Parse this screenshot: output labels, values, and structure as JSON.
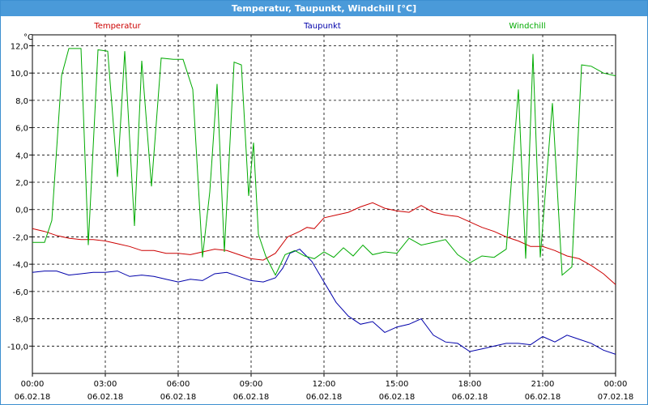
{
  "window": {
    "title": "Temperatur, Taupunkt, Windchill [°C]"
  },
  "chart_data": {
    "type": "line",
    "title": "Temperatur, Taupunkt, Windchill [°C]",
    "ylabel": "°C",
    "ylim": [
      -12,
      12.8
    ],
    "xlim": [
      0,
      24
    ],
    "grid": true,
    "y_ticks": [
      12.0,
      10.0,
      8.0,
      6.0,
      4.0,
      2.0,
      0.0,
      -2.0,
      -4.0,
      -6.0,
      -8.0,
      -10.0
    ],
    "y_tick_labels": [
      "12,0",
      "10,0",
      "8,0",
      "6,0",
      "4,0",
      "2,0",
      "0,0",
      "-2,0",
      "-4,0",
      "-6,0",
      "-8,0",
      "-10,0"
    ],
    "x_ticks": [
      {
        "hour": 0,
        "time": "00:00",
        "date": "06.02.18"
      },
      {
        "hour": 3,
        "time": "03:00",
        "date": "06.02.18"
      },
      {
        "hour": 6,
        "time": "06:00",
        "date": "06.02.18"
      },
      {
        "hour": 9,
        "time": "09:00",
        "date": "06.02.18"
      },
      {
        "hour": 12,
        "time": "12:00",
        "date": "06.02.18"
      },
      {
        "hour": 15,
        "time": "15:00",
        "date": "06.02.18"
      },
      {
        "hour": 18,
        "time": "18:00",
        "date": "06.02.18"
      },
      {
        "hour": 21,
        "time": "21:00",
        "date": "06.02.18"
      },
      {
        "hour": 24,
        "time": "00:00",
        "date": "07.02.18"
      }
    ],
    "series": [
      {
        "name": "Temperatur",
        "color": "#cc0000",
        "points": [
          [
            0,
            -1.4
          ],
          [
            0.5,
            -1.6
          ],
          [
            1,
            -1.9
          ],
          [
            1.5,
            -2.1
          ],
          [
            2,
            -2.2
          ],
          [
            2.5,
            -2.2
          ],
          [
            3,
            -2.3
          ],
          [
            3.5,
            -2.5
          ],
          [
            4,
            -2.7
          ],
          [
            4.5,
            -3.0
          ],
          [
            5,
            -3.0
          ],
          [
            5.5,
            -3.2
          ],
          [
            6,
            -3.2
          ],
          [
            6.5,
            -3.3
          ],
          [
            7,
            -3.1
          ],
          [
            7.5,
            -2.9
          ],
          [
            8,
            -3.0
          ],
          [
            8.5,
            -3.3
          ],
          [
            9,
            -3.6
          ],
          [
            9.5,
            -3.7
          ],
          [
            10,
            -3.2
          ],
          [
            10.5,
            -2.0
          ],
          [
            11,
            -1.6
          ],
          [
            11.3,
            -1.3
          ],
          [
            11.6,
            -1.4
          ],
          [
            12,
            -0.6
          ],
          [
            12.5,
            -0.4
          ],
          [
            13,
            -0.2
          ],
          [
            13.5,
            0.2
          ],
          [
            14,
            0.5
          ],
          [
            14.5,
            0.1
          ],
          [
            15,
            -0.1
          ],
          [
            15.5,
            -0.2
          ],
          [
            16,
            0.3
          ],
          [
            16.5,
            -0.2
          ],
          [
            17,
            -0.4
          ],
          [
            17.5,
            -0.5
          ],
          [
            18,
            -0.9
          ],
          [
            18.5,
            -1.3
          ],
          [
            19,
            -1.6
          ],
          [
            19.5,
            -2.0
          ],
          [
            20,
            -2.3
          ],
          [
            20.5,
            -2.7
          ],
          [
            21,
            -2.7
          ],
          [
            21.5,
            -3.0
          ],
          [
            22,
            -3.4
          ],
          [
            22.5,
            -3.6
          ],
          [
            23,
            -4.1
          ],
          [
            23.5,
            -4.7
          ],
          [
            24,
            -5.5
          ]
        ]
      },
      {
        "name": "Taupunkt",
        "color": "#0000aa",
        "points": [
          [
            0,
            -4.6
          ],
          [
            0.5,
            -4.5
          ],
          [
            1,
            -4.5
          ],
          [
            1.5,
            -4.8
          ],
          [
            2,
            -4.7
          ],
          [
            2.5,
            -4.6
          ],
          [
            3,
            -4.6
          ],
          [
            3.5,
            -4.5
          ],
          [
            4,
            -4.9
          ],
          [
            4.5,
            -4.8
          ],
          [
            5,
            -4.9
          ],
          [
            5.5,
            -5.1
          ],
          [
            6,
            -5.3
          ],
          [
            6.5,
            -5.1
          ],
          [
            7,
            -5.2
          ],
          [
            7.5,
            -4.7
          ],
          [
            8,
            -4.6
          ],
          [
            8.5,
            -4.9
          ],
          [
            9,
            -5.2
          ],
          [
            9.5,
            -5.3
          ],
          [
            10,
            -5.0
          ],
          [
            10.3,
            -4.3
          ],
          [
            10.6,
            -3.2
          ],
          [
            11,
            -2.9
          ],
          [
            11.5,
            -3.8
          ],
          [
            12,
            -5.3
          ],
          [
            12.5,
            -6.8
          ],
          [
            13,
            -7.8
          ],
          [
            13.5,
            -8.4
          ],
          [
            14,
            -8.2
          ],
          [
            14.5,
            -9.0
          ],
          [
            15,
            -8.6
          ],
          [
            15.5,
            -8.4
          ],
          [
            16,
            -8.0
          ],
          [
            16.5,
            -9.2
          ],
          [
            17,
            -9.7
          ],
          [
            17.5,
            -9.8
          ],
          [
            18,
            -10.4
          ],
          [
            18.5,
            -10.2
          ],
          [
            19,
            -10.0
          ],
          [
            19.5,
            -9.8
          ],
          [
            20,
            -9.8
          ],
          [
            20.5,
            -9.9
          ],
          [
            21,
            -9.3
          ],
          [
            21.5,
            -9.7
          ],
          [
            22,
            -9.2
          ],
          [
            22.5,
            -9.5
          ],
          [
            23,
            -9.8
          ],
          [
            23.5,
            -10.3
          ],
          [
            24,
            -10.6
          ]
        ]
      },
      {
        "name": "Windchill",
        "color": "#00aa00",
        "points": [
          [
            0,
            -2.4
          ],
          [
            0.5,
            -2.4
          ],
          [
            0.8,
            -0.8
          ],
          [
            1.2,
            9.8
          ],
          [
            1.5,
            11.8
          ],
          [
            2,
            11.8
          ],
          [
            2.3,
            -2.6
          ],
          [
            2.7,
            11.7
          ],
          [
            3.1,
            11.6
          ],
          [
            3.5,
            2.4
          ],
          [
            3.8,
            11.6
          ],
          [
            4.2,
            -1.2
          ],
          [
            4.5,
            10.9
          ],
          [
            4.9,
            1.7
          ],
          [
            5.3,
            11.1
          ],
          [
            5.8,
            11.0
          ],
          [
            6.2,
            11.0
          ],
          [
            6.6,
            8.8
          ],
          [
            7.0,
            -3.5
          ],
          [
            7.3,
            1.3
          ],
          [
            7.6,
            9.2
          ],
          [
            7.9,
            -3.1
          ],
          [
            8.3,
            10.8
          ],
          [
            8.6,
            10.6
          ],
          [
            8.9,
            1.0
          ],
          [
            9.1,
            4.9
          ],
          [
            9.3,
            -1.8
          ],
          [
            9.6,
            -3.4
          ],
          [
            10,
            -4.8
          ],
          [
            10.4,
            -3.3
          ],
          [
            10.8,
            -3.0
          ],
          [
            11.2,
            -3.4
          ],
          [
            11.6,
            -3.6
          ],
          [
            12.0,
            -3.1
          ],
          [
            12.4,
            -3.5
          ],
          [
            12.8,
            -2.8
          ],
          [
            13.2,
            -3.4
          ],
          [
            13.6,
            -2.6
          ],
          [
            14,
            -3.3
          ],
          [
            14.5,
            -3.1
          ],
          [
            15,
            -3.2
          ],
          [
            15.5,
            -2.1
          ],
          [
            16,
            -2.6
          ],
          [
            16.5,
            -2.4
          ],
          [
            17,
            -2.2
          ],
          [
            17.5,
            -3.3
          ],
          [
            18,
            -3.9
          ],
          [
            18.5,
            -3.4
          ],
          [
            19,
            -3.5
          ],
          [
            19.5,
            -2.9
          ],
          [
            20,
            8.8
          ],
          [
            20.3,
            -3.6
          ],
          [
            20.6,
            11.4
          ],
          [
            20.9,
            -3.5
          ],
          [
            21.4,
            7.8
          ],
          [
            21.8,
            -4.8
          ],
          [
            22.2,
            -4.2
          ],
          [
            22.6,
            10.6
          ],
          [
            23,
            10.5
          ],
          [
            23.5,
            10.0
          ],
          [
            24,
            9.8
          ]
        ]
      }
    ]
  }
}
